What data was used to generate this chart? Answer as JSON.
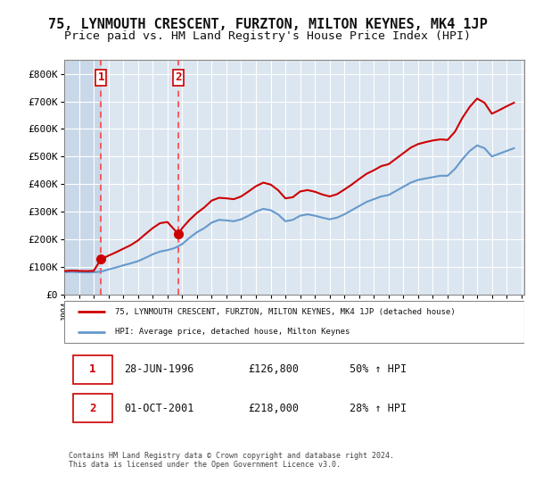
{
  "title": "75, LYNMOUTH CRESCENT, FURZTON, MILTON KEYNES, MK4 1JP",
  "subtitle": "Price paid vs. HM Land Registry's House Price Index (HPI)",
  "title_fontsize": 11,
  "subtitle_fontsize": 9.5,
  "bg_color": "#ffffff",
  "plot_bg_color": "#dce6f0",
  "hatch_color": "#c0cfe0",
  "grid_color": "#ffffff",
  "ylim": [
    0,
    850000
  ],
  "yticks": [
    0,
    100000,
    200000,
    300000,
    400000,
    500000,
    600000,
    700000,
    800000
  ],
  "ytick_labels": [
    "£0",
    "£100K",
    "£200K",
    "£300K",
    "£400K",
    "£500K",
    "£600K",
    "£700K",
    "£800K"
  ],
  "sale1_date": "1996-06-28",
  "sale1_price": 126800,
  "sale1_label": "1",
  "sale2_date": "2001-10-01",
  "sale2_price": 218000,
  "sale2_label": "2",
  "sale1_x": 1996.49,
  "sale2_x": 2001.75,
  "hpi_line_color": "#6699cc",
  "price_line_color": "#cc0000",
  "marker_color": "#cc0000",
  "dashed_line_color": "#ff4444",
  "legend_label_price": "75, LYNMOUTH CRESCENT, FURZTON, MILTON KEYNES, MK4 1JP (detached house)",
  "legend_label_hpi": "HPI: Average price, detached house, Milton Keynes",
  "footnote": "Contains HM Land Registry data © Crown copyright and database right 2024.\nThis data is licensed under the Open Government Licence v3.0.",
  "table_rows": [
    {
      "num": "1",
      "date": "28-JUN-1996",
      "price": "£126,800",
      "change": "50% ↑ HPI"
    },
    {
      "num": "2",
      "date": "01-OCT-2001",
      "price": "£218,000",
      "change": "28% ↑ HPI"
    }
  ],
  "hpi_data": {
    "years": [
      1994,
      1994.5,
      1995,
      1995.5,
      1996,
      1996.5,
      1997,
      1997.5,
      1998,
      1998.5,
      1999,
      1999.5,
      2000,
      2000.5,
      2001,
      2001.5,
      2002,
      2002.5,
      2003,
      2003.5,
      2004,
      2004.5,
      2005,
      2005.5,
      2006,
      2006.5,
      2007,
      2007.5,
      2008,
      2008.5,
      2009,
      2009.5,
      2010,
      2010.5,
      2011,
      2011.5,
      2012,
      2012.5,
      2013,
      2013.5,
      2014,
      2014.5,
      2015,
      2015.5,
      2016,
      2016.5,
      2017,
      2017.5,
      2018,
      2018.5,
      2019,
      2019.5,
      2020,
      2020.5,
      2021,
      2021.5,
      2022,
      2022.5,
      2023,
      2023.5,
      2024,
      2024.5
    ],
    "values": [
      80000,
      81000,
      80000,
      79000,
      80000,
      82000,
      90000,
      97000,
      105000,
      112000,
      120000,
      132000,
      145000,
      155000,
      160000,
      168000,
      182000,
      205000,
      225000,
      240000,
      260000,
      270000,
      268000,
      265000,
      272000,
      285000,
      300000,
      310000,
      305000,
      290000,
      265000,
      270000,
      285000,
      290000,
      285000,
      278000,
      272000,
      278000,
      290000,
      305000,
      320000,
      335000,
      345000,
      355000,
      360000,
      375000,
      390000,
      405000,
      415000,
      420000,
      425000,
      430000,
      430000,
      455000,
      490000,
      520000,
      540000,
      530000,
      500000,
      510000,
      520000,
      530000
    ]
  },
  "price_data": {
    "years": [
      1994,
      1994.5,
      1995,
      1995.5,
      1996,
      1996.49,
      1997,
      1997.5,
      1998,
      1998.5,
      1999,
      1999.5,
      2000,
      2000.5,
      2001,
      2001.75,
      2002,
      2002.5,
      2003,
      2003.5,
      2004,
      2004.5,
      2005,
      2005.5,
      2006,
      2006.5,
      2007,
      2007.5,
      2008,
      2008.5,
      2009,
      2009.5,
      2010,
      2010.5,
      2011,
      2011.5,
      2012,
      2012.5,
      2013,
      2013.5,
      2014,
      2014.5,
      2015,
      2015.5,
      2016,
      2016.5,
      2017,
      2017.5,
      2018,
      2018.5,
      2019,
      2019.5,
      2020,
      2020.5,
      2021,
      2021.5,
      2022,
      2022.5,
      2023,
      2023.5,
      2024,
      2024.5
    ],
    "values": [
      84000,
      86000,
      85000,
      84000,
      85000,
      126800,
      140000,
      152000,
      165000,
      178000,
      195000,
      218000,
      240000,
      258000,
      262000,
      218000,
      240000,
      270000,
      295000,
      315000,
      340000,
      350000,
      348000,
      345000,
      355000,
      373000,
      392000,
      405000,
      398000,
      378000,
      348000,
      352000,
      373000,
      378000,
      372000,
      362000,
      355000,
      363000,
      380000,
      398000,
      418000,
      437000,
      450000,
      465000,
      472000,
      492000,
      512000,
      532000,
      545000,
      552000,
      558000,
      562000,
      560000,
      590000,
      640000,
      680000,
      710000,
      695000,
      655000,
      668000,
      682000,
      695000
    ]
  }
}
